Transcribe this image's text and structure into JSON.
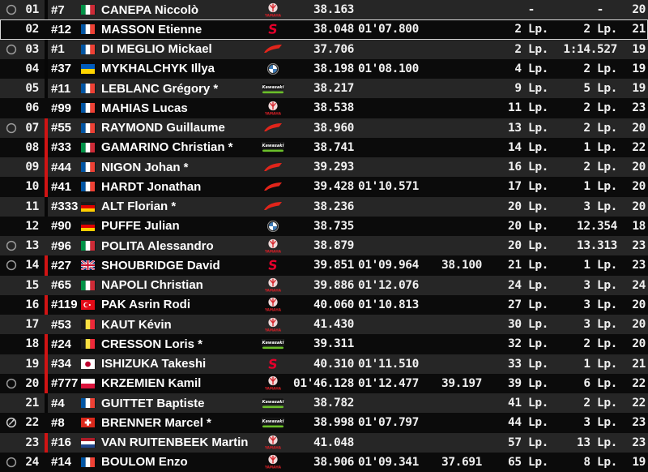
{
  "app": {
    "description": "endurance-race-live-timing-table",
    "colors": {
      "row_odd_bg": "#262626",
      "row_even_bg": "#0b0b0b",
      "text": "#ffffff",
      "status_bar_red": "#d01414",
      "selected_row_border": "#d9d9d9",
      "honda_red": "#e1251b",
      "suzuki_red": "#e4002b",
      "yamaha_red": "#d61f26",
      "bmw_blue": "#3f7bb6",
      "kawasaki_green": "#6bbf2a"
    }
  },
  "table": {
    "columns": [
      "status",
      "position",
      "car_number",
      "nationality_flag",
      "rider_name",
      "manufacturer",
      "last_time",
      "lap_time",
      "sector_time",
      "laps_behind",
      "gap",
      "count"
    ],
    "rows": [
      {
        "icon": "circle",
        "pos": "01",
        "bar": "dark",
        "num": "#7",
        "flag": "it",
        "name": "CANEPA Niccolò",
        "brand": "yamaha",
        "t1": "38.163",
        "t2": "",
        "t3": "",
        "laps": "-",
        "gap": "-",
        "n": "20",
        "selected": false
      },
      {
        "icon": "",
        "pos": "02",
        "bar": "none",
        "num": "#12",
        "flag": "fr",
        "name": "MASSON Etienne",
        "brand": "suzuki",
        "t1": "38.048",
        "t2": "01'07.800",
        "t3": "",
        "laps": "2 Lp.",
        "gap": "2 Lp.",
        "n": "21",
        "selected": true
      },
      {
        "icon": "circle",
        "pos": "03",
        "bar": "dark",
        "num": "#1",
        "flag": "fr",
        "name": "DI MEGLIO Mickael",
        "brand": "honda",
        "t1": "37.706",
        "t2": "",
        "t3": "",
        "laps": "2 Lp.",
        "gap": "1:14.527",
        "n": "19",
        "selected": false
      },
      {
        "icon": "",
        "pos": "04",
        "bar": "dark",
        "num": "#37",
        "flag": "ua",
        "name": "MYKHALCHYK Illya",
        "brand": "bmw",
        "t1": "38.198",
        "t2": "01'08.100",
        "t3": "",
        "laps": "4 Lp.",
        "gap": "2 Lp.",
        "n": "19",
        "selected": false
      },
      {
        "icon": "",
        "pos": "05",
        "bar": "dark",
        "num": "#11",
        "flag": "fr",
        "name": "LEBLANC Grégory *",
        "brand": "kawasaki",
        "t1": "38.217",
        "t2": "",
        "t3": "",
        "laps": "9 Lp.",
        "gap": "5 Lp.",
        "n": "19",
        "selected": false
      },
      {
        "icon": "",
        "pos": "06",
        "bar": "none",
        "num": "#99",
        "flag": "fr",
        "name": "MAHIAS Lucas",
        "brand": "yamaha",
        "t1": "38.538",
        "t2": "",
        "t3": "",
        "laps": "11 Lp.",
        "gap": "2 Lp.",
        "n": "23",
        "selected": false
      },
      {
        "icon": "circle",
        "pos": "07",
        "bar": "red",
        "num": "#55",
        "flag": "fr",
        "name": "RAYMOND Guillaume",
        "brand": "honda",
        "t1": "38.960",
        "t2": "",
        "t3": "",
        "laps": "13 Lp.",
        "gap": "2 Lp.",
        "n": "20",
        "selected": false
      },
      {
        "icon": "",
        "pos": "08",
        "bar": "red",
        "num": "#33",
        "flag": "it",
        "name": "GAMARINO Christian *",
        "brand": "kawasaki",
        "t1": "38.741",
        "t2": "",
        "t3": "",
        "laps": "14 Lp.",
        "gap": "1 Lp.",
        "n": "22",
        "selected": false
      },
      {
        "icon": "",
        "pos": "09",
        "bar": "red",
        "num": "#44",
        "flag": "fr",
        "name": "NIGON Johan *",
        "brand": "honda",
        "t1": "39.293",
        "t2": "",
        "t3": "",
        "laps": "16 Lp.",
        "gap": "2 Lp.",
        "n": "20",
        "selected": false
      },
      {
        "icon": "",
        "pos": "10",
        "bar": "red",
        "num": "#41",
        "flag": "fr",
        "name": "HARDT Jonathan",
        "brand": "honda",
        "t1": "39.428",
        "t2": "01'10.571",
        "t3": "",
        "laps": "17 Lp.",
        "gap": "1 Lp.",
        "n": "20",
        "selected": false
      },
      {
        "icon": "",
        "pos": "11",
        "bar": "dark",
        "num": "#333",
        "flag": "de",
        "name": "ALT Florian *",
        "brand": "honda",
        "t1": "38.236",
        "t2": "",
        "t3": "",
        "laps": "20 Lp.",
        "gap": "3 Lp.",
        "n": "20",
        "selected": false
      },
      {
        "icon": "",
        "pos": "12",
        "bar": "none",
        "num": "#90",
        "flag": "de",
        "name": "PUFFE Julian",
        "brand": "bmw",
        "t1": "38.735",
        "t2": "",
        "t3": "",
        "laps": "20 Lp.",
        "gap": "12.354",
        "n": "18",
        "selected": false
      },
      {
        "icon": "circle",
        "pos": "13",
        "bar": "none",
        "num": "#96",
        "flag": "it",
        "name": "POLITA Alessandro",
        "brand": "yamaha",
        "t1": "38.879",
        "t2": "",
        "t3": "",
        "laps": "20 Lp.",
        "gap": "13.313",
        "n": "23",
        "selected": false
      },
      {
        "icon": "circle",
        "pos": "14",
        "bar": "red",
        "num": "#27",
        "flag": "gb",
        "name": "SHOUBRIDGE David",
        "brand": "suzuki",
        "t1": "39.851",
        "t2": "01'09.964",
        "t3": "38.100",
        "laps": "21 Lp.",
        "gap": "1 Lp.",
        "n": "23",
        "selected": false
      },
      {
        "icon": "",
        "pos": "15",
        "bar": "none",
        "num": "#65",
        "flag": "it",
        "name": "NAPOLI Christian",
        "brand": "yamaha",
        "t1": "39.886",
        "t2": "01'12.076",
        "t3": "",
        "laps": "24 Lp.",
        "gap": "3 Lp.",
        "n": "24",
        "selected": false
      },
      {
        "icon": "",
        "pos": "16",
        "bar": "red",
        "num": "#119",
        "flag": "tr",
        "name": "PAK Asrin Rodi",
        "brand": "yamaha",
        "t1": "40.060",
        "t2": "01'10.813",
        "t3": "",
        "laps": "27 Lp.",
        "gap": "3 Lp.",
        "n": "20",
        "selected": false
      },
      {
        "icon": "",
        "pos": "17",
        "bar": "none",
        "num": "#53",
        "flag": "be",
        "name": "KAUT Kévin",
        "brand": "yamaha",
        "t1": "41.430",
        "t2": "",
        "t3": "",
        "laps": "30 Lp.",
        "gap": "3 Lp.",
        "n": "20",
        "selected": false
      },
      {
        "icon": "",
        "pos": "18",
        "bar": "red",
        "num": "#24",
        "flag": "be",
        "name": "CRESSON Loris *",
        "brand": "kawasaki",
        "t1": "39.311",
        "t2": "",
        "t3": "",
        "laps": "32 Lp.",
        "gap": "2 Lp.",
        "n": "20",
        "selected": false
      },
      {
        "icon": "",
        "pos": "19",
        "bar": "red",
        "num": "#34",
        "flag": "jp",
        "name": "ISHIZUKA Takeshi",
        "brand": "suzuki",
        "t1": "40.310",
        "t2": "01'11.510",
        "t3": "",
        "laps": "33 Lp.",
        "gap": "1 Lp.",
        "n": "21",
        "selected": false
      },
      {
        "icon": "circle",
        "pos": "20",
        "bar": "red",
        "num": "#777",
        "flag": "pl",
        "name": "KRZEMIEN Kamil",
        "brand": "yamaha",
        "t1": "01'46.128",
        "t2": "01'12.477",
        "t3": "39.197",
        "laps": "39 Lp.",
        "gap": "6 Lp.",
        "n": "22",
        "selected": false
      },
      {
        "icon": "",
        "pos": "21",
        "bar": "dark",
        "num": "#4",
        "flag": "fr",
        "name": "GUITTET Baptiste",
        "brand": "kawasaki",
        "t1": "38.782",
        "t2": "",
        "t3": "",
        "laps": "41 Lp.",
        "gap": "2 Lp.",
        "n": "22",
        "selected": false
      },
      {
        "icon": "pit",
        "pos": "22",
        "bar": "none",
        "num": "#8",
        "flag": "ch",
        "name": "BRENNER Marcel *",
        "brand": "kawasaki",
        "t1": "38.998",
        "t2": "01'07.797",
        "t3": "",
        "laps": "44 Lp.",
        "gap": "3 Lp.",
        "n": "23",
        "selected": false
      },
      {
        "icon": "",
        "pos": "23",
        "bar": "red",
        "num": "#16",
        "flag": "nl",
        "name": "VAN RUITENBEEK Martin",
        "brand": "yamaha",
        "t1": "41.048",
        "t2": "",
        "t3": "",
        "laps": "57 Lp.",
        "gap": "13 Lp.",
        "n": "23",
        "selected": false
      },
      {
        "icon": "circle",
        "pos": "24",
        "bar": "none",
        "num": "#14",
        "flag": "fr",
        "name": "BOULOM Enzo",
        "brand": "yamaha",
        "t1": "38.906",
        "t2": "01'09.341",
        "t3": "37.691",
        "laps": "65 Lp.",
        "gap": "8 Lp.",
        "n": "19",
        "selected": false
      }
    ]
  }
}
